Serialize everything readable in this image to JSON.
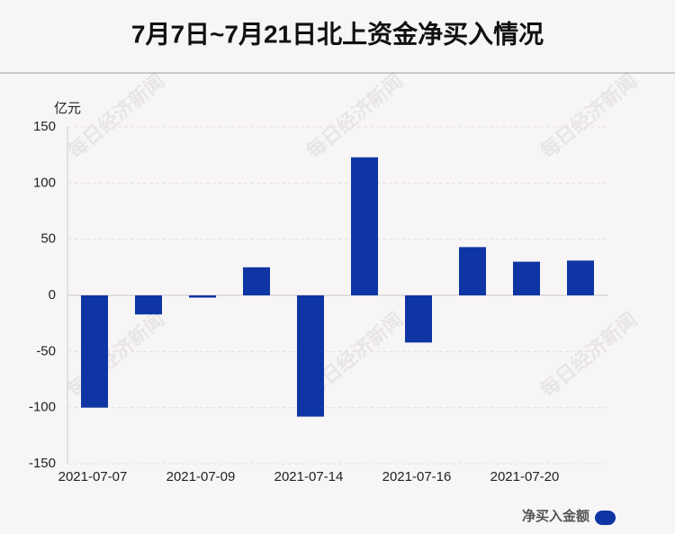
{
  "chart_data": {
    "type": "bar",
    "title": "7月7日~7月21日北上资金净买入情况",
    "y_unit": "亿元",
    "watermark": "每日经济新闻",
    "categories": [
      "2021-07-07",
      null,
      "2021-07-09",
      null,
      "2021-07-14",
      null,
      "2021-07-16",
      null,
      "2021-07-20",
      null
    ],
    "series": [
      {
        "name": "净买入金额",
        "color": "#0e35a3",
        "values": [
          -100,
          -17,
          -2,
          25,
          -108,
          123,
          -42,
          43,
          30,
          31
        ]
      }
    ],
    "ylim": [
      -150,
      150
    ],
    "yticks": [
      -150,
      -100,
      -50,
      0,
      50,
      100,
      150
    ],
    "grid": true,
    "legend": "bottom-right"
  }
}
